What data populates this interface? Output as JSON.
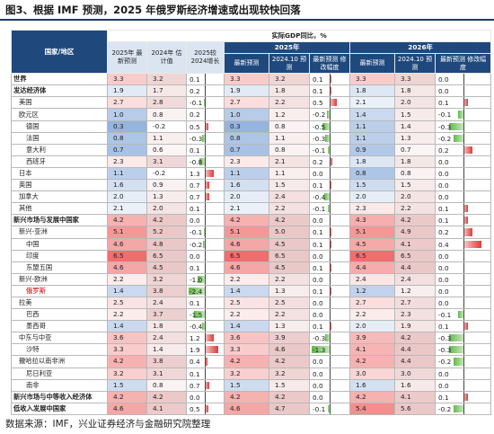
{
  "figure": {
    "title": "图3、根据 IMF 预测，2025 年俄罗斯经济增速或出现较快回落",
    "source": "数据来源：IMF，兴业证券经济与金融研究院整理"
  },
  "header": {
    "region_label": "国家/地区",
    "gdp_label": "实际GDP同比，%",
    "col_2025_latest": "2025年 最新预测",
    "col_2024_est": "2024年 估计值",
    "col_2025_vs_2024": "2025较 2024增长",
    "year_2025": "2025年",
    "year_2026": "2026年",
    "sub_latest": "最新预测",
    "sub_prev": "2024.10 预测",
    "sub_rev": "最新预测 修改幅度"
  },
  "colors": {
    "header_blue": "#1f497d",
    "light_blue_fill": "#dbe5f1",
    "red_bar": "#e03a3a",
    "green_bar": "#63b94a"
  },
  "rows": [
    {
      "name": "世界",
      "level": 0,
      "a": "3.3",
      "b": "3.2",
      "c": "0.1",
      "d": "3.3",
      "e": "3.2",
      "f": "0.1",
      "g": "3.3",
      "h": "3.3",
      "i": "0.0"
    },
    {
      "name": "发达经济体",
      "level": 0,
      "a": "1.9",
      "b": "1.7",
      "c": "0.2",
      "d": "1.9",
      "e": "1.8",
      "f": "0.1",
      "g": "1.8",
      "h": "1.8",
      "i": "0.0"
    },
    {
      "name": "美国",
      "level": 1,
      "a": "2.7",
      "b": "2.8",
      "c": "-0.1",
      "d": "2.7",
      "e": "2.2",
      "f": "0.5",
      "g": "2.1",
      "h": "2.0",
      "i": "0.1"
    },
    {
      "name": "欧元区",
      "level": 1,
      "a": "1.0",
      "b": "0.8",
      "c": "0.2",
      "d": "1.0",
      "e": "1.2",
      "f": "-0.2",
      "g": "1.4",
      "h": "1.5",
      "i": "-0.1"
    },
    {
      "name": "德国",
      "level": 2,
      "a": "0.3",
      "b": "-0.2",
      "c": "0.5",
      "d": "0.3",
      "e": "0.8",
      "f": "-0.5",
      "g": "1.1",
      "h": "1.4",
      "i": "-0.3"
    },
    {
      "name": "法国",
      "level": 2,
      "a": "0.8",
      "b": "1.1",
      "c": "-0.3",
      "d": "0.8",
      "e": "1.1",
      "f": "-0.3",
      "g": "1.1",
      "h": "1.3",
      "i": "-0.2"
    },
    {
      "name": "意大利",
      "level": 2,
      "a": "0.7",
      "b": "0.6",
      "c": "0.1",
      "d": "0.7",
      "e": "0.8",
      "f": "-0.1",
      "g": "0.9",
      "h": "0.7",
      "i": "0.2"
    },
    {
      "name": "西班牙",
      "level": 2,
      "a": "2.3",
      "b": "3.1",
      "c": "-0.8",
      "d": "2.3",
      "e": "2.1",
      "f": "0.2",
      "g": "1.8",
      "h": "1.8",
      "i": "0.0"
    },
    {
      "name": "日本",
      "level": 1,
      "a": "1.1",
      "b": "-0.2",
      "c": "1.3",
      "d": "1.1",
      "e": "1.1",
      "f": "0.0",
      "g": "0.8",
      "h": "0.8",
      "i": "0.0"
    },
    {
      "name": "英国",
      "level": 1,
      "a": "1.6",
      "b": "0.9",
      "c": "0.7",
      "d": "1.6",
      "e": "1.5",
      "f": "0.1",
      "g": "1.5",
      "h": "1.5",
      "i": "0.0"
    },
    {
      "name": "加拿大",
      "level": 1,
      "a": "2.0",
      "b": "1.3",
      "c": "0.7",
      "d": "2.0",
      "e": "2.4",
      "f": "-0.4",
      "g": "2.0",
      "h": "2.0",
      "i": "0.0"
    },
    {
      "name": "其他",
      "level": 1,
      "a": "2.1",
      "b": "2.0",
      "c": "0.1",
      "d": "2.1",
      "e": "2.2",
      "f": "-0.1",
      "g": "2.3",
      "h": "2.2",
      "i": "0.1"
    },
    {
      "name": "新兴市场与发展中国家",
      "level": 0,
      "a": "4.2",
      "b": "4.2",
      "c": "0.0",
      "d": "4.2",
      "e": "4.2",
      "f": "0.0",
      "g": "4.3",
      "h": "4.2",
      "i": "0.1"
    },
    {
      "name": "新兴-亚洲",
      "level": 1,
      "a": "5.1",
      "b": "5.2",
      "c": "-0.1",
      "d": "5.1",
      "e": "5.0",
      "f": "0.1",
      "g": "5.1",
      "h": "4.9",
      "i": "0.2"
    },
    {
      "name": "中国",
      "level": 2,
      "a": "4.6",
      "b": "4.8",
      "c": "-0.2",
      "d": "4.6",
      "e": "4.5",
      "f": "0.1",
      "g": "4.5",
      "h": "4.1",
      "i": "0.4"
    },
    {
      "name": "印度",
      "level": 2,
      "a": "6.5",
      "b": "6.5",
      "c": "0.0",
      "d": "6.5",
      "e": "6.5",
      "f": "0.0",
      "g": "6.5",
      "h": "6.5",
      "i": "0.0"
    },
    {
      "name": "东盟五国",
      "level": 2,
      "a": "4.6",
      "b": "4.5",
      "c": "0.1",
      "d": "4.6",
      "e": "4.5",
      "f": "0.1",
      "g": "4.4",
      "h": "4.4",
      "i": "0.0"
    },
    {
      "name": "新兴-欧洲",
      "level": 1,
      "a": "2.2",
      "b": "3.2",
      "c": "-1.0",
      "d": "2.2",
      "e": "2.2",
      "f": "0.0",
      "g": "2.4",
      "h": "2.4",
      "i": "0.0"
    },
    {
      "name": "俄罗斯",
      "level": 2,
      "a": "1.4",
      "b": "3.8",
      "c": "-2.4",
      "d": "1.4",
      "e": "1.3",
      "f": "0.1",
      "g": "1.2",
      "h": "1.2",
      "i": "0.0",
      "highlight": true
    },
    {
      "name": "拉美",
      "level": 1,
      "a": "2.5",
      "b": "2.4",
      "c": "0.1",
      "d": "2.5",
      "e": "2.5",
      "f": "0.0",
      "g": "2.7",
      "h": "2.7",
      "i": "0.0"
    },
    {
      "name": "巴西",
      "level": 2,
      "a": "2.2",
      "b": "3.7",
      "c": "-1.5",
      "d": "2.2",
      "e": "2.2",
      "f": "0.0",
      "g": "2.2",
      "h": "2.3",
      "i": "-0.1"
    },
    {
      "name": "墨西哥",
      "level": 2,
      "a": "1.4",
      "b": "1.8",
      "c": "-0.4",
      "d": "1.4",
      "e": "1.3",
      "f": "0.1",
      "g": "2.0",
      "h": "1.9",
      "i": "0.1"
    },
    {
      "name": "中东与中亚",
      "level": 1,
      "a": "3.6",
      "b": "2.4",
      "c": "1.2",
      "d": "3.6",
      "e": "3.9",
      "f": "-0.3",
      "g": "3.9",
      "h": "4.2",
      "i": "-0.3"
    },
    {
      "name": "沙特",
      "level": 2,
      "a": "3.3",
      "b": "1.4",
      "c": "1.9",
      "d": "3.3",
      "e": "4.6",
      "f": "-1.3",
      "g": "4.1",
      "h": "4.4",
      "i": "-0.3"
    },
    {
      "name": "撒哈拉以南非洲",
      "level": 1,
      "a": "4.2",
      "b": "3.8",
      "c": "0.4",
      "d": "4.2",
      "e": "4.2",
      "f": "0.0",
      "g": "4.2",
      "h": "4.4",
      "i": "-0.2"
    },
    {
      "name": "尼日利亚",
      "level": 2,
      "a": "3.2",
      "b": "3.1",
      "c": "0.1",
      "d": "3.2",
      "e": "3.2",
      "f": "0.0",
      "g": "3.0",
      "h": "3.0",
      "i": "0.0"
    },
    {
      "name": "南非",
      "level": 2,
      "a": "1.5",
      "b": "0.8",
      "c": "0.7",
      "d": "1.5",
      "e": "1.5",
      "f": "0.0",
      "g": "1.6",
      "h": "1.6",
      "i": "0.0"
    },
    {
      "name": "新兴市场与中等收入经济体",
      "level": 0,
      "a": "4.2",
      "b": "4.2",
      "c": "0.0",
      "d": "4.2",
      "e": "4.2",
      "f": "0.0",
      "g": "4.2",
      "h": "4.1",
      "i": "0.1"
    },
    {
      "name": "低收入发展中国家",
      "level": 0,
      "a": "4.6",
      "b": "4.1",
      "c": "0.5",
      "d": "4.6",
      "e": "4.7",
      "f": "-0.1",
      "g": "5.4",
      "h": "5.6",
      "i": "-0.2"
    }
  ]
}
